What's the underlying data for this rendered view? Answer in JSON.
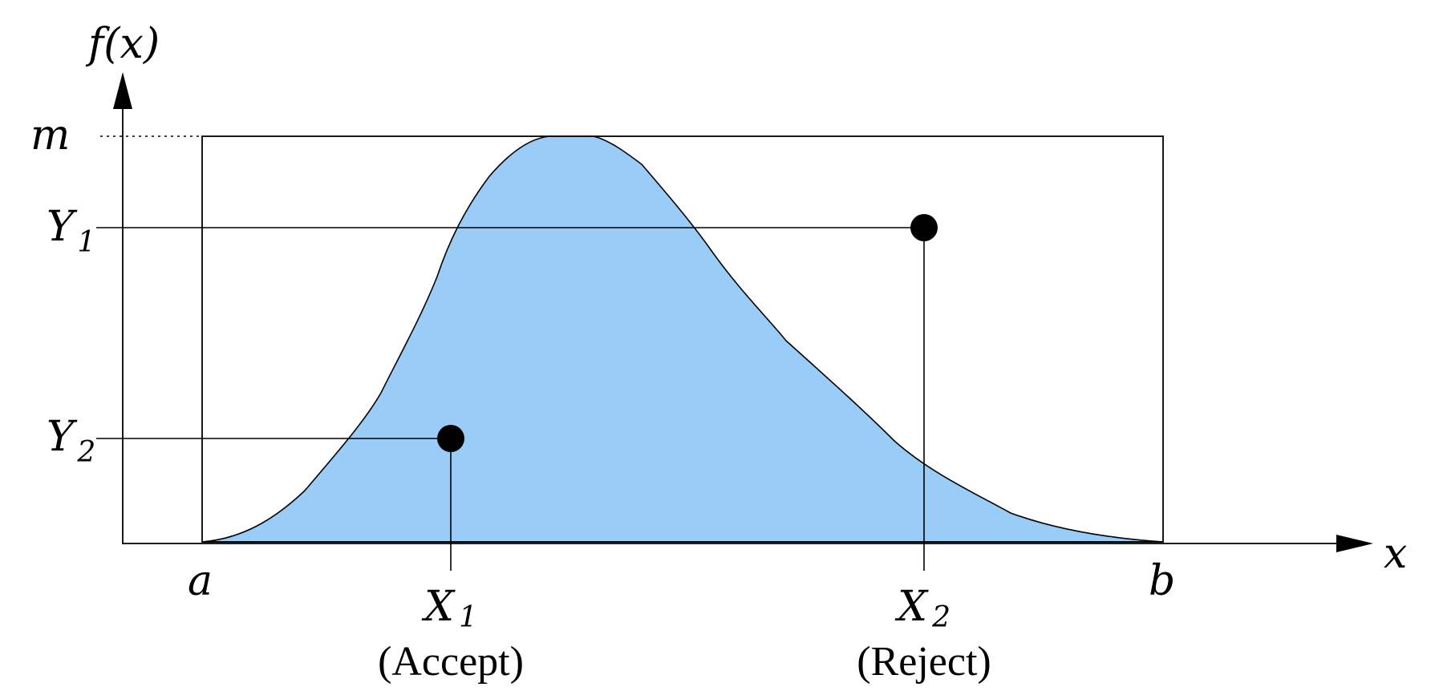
{
  "labels": {
    "y_axis_f": "f(",
    "y_axis_x": "x",
    "y_axis_close": ")",
    "m": "m",
    "y1_main": "Y",
    "y1_sub": "1",
    "y2_main": "Y",
    "y2_sub": "2",
    "x_axis": "x",
    "a": "a",
    "b": "b",
    "x1_main": "X",
    "x1_sub": "1",
    "x1_note": "(Accept)",
    "x2_main": "X",
    "x2_sub": "2",
    "x2_note": "(Reject)"
  },
  "colors": {
    "area_fill": "#99ccf7",
    "line": "#000000"
  }
}
